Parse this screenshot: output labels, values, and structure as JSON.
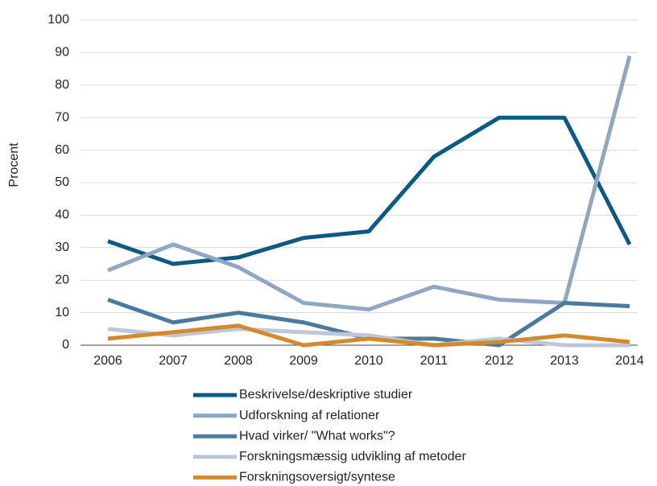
{
  "chart_data": {
    "type": "line",
    "y_label": "Procent",
    "categories": [
      "2006",
      "2007",
      "2008",
      "2009",
      "2010",
      "2011",
      "2012",
      "2013",
      "2014"
    ],
    "series": [
      {
        "name": "Beskrivelse/deskriptive studier",
        "color": "#0b5a84",
        "values": [
          32,
          25,
          27,
          33,
          35,
          58,
          70,
          70,
          31
        ]
      },
      {
        "name": "Udforskning af relationer",
        "color": "#8fa7c0",
        "values": [
          23,
          31,
          24,
          13,
          11,
          18,
          14,
          13,
          89
        ]
      },
      {
        "name": "Hvad virker/ \"What works\"?",
        "color": "#4a7b9d",
        "values": [
          14,
          7,
          10,
          7,
          2,
          2,
          0,
          13,
          12
        ]
      },
      {
        "name": "Forskningsmæssig udvikling af metoder",
        "color": "#bcc7da",
        "values": [
          5,
          3,
          5,
          4,
          3,
          0,
          2,
          0,
          0
        ]
      },
      {
        "name": "Forskningsoversigt/syntese",
        "color": "#d4892c",
        "values": [
          2,
          4,
          6,
          0,
          2,
          0,
          1,
          3,
          1
        ]
      }
    ],
    "ylim": [
      0,
      100
    ],
    "yticks": [
      0,
      10,
      20,
      30,
      40,
      50,
      60,
      70,
      80,
      90,
      100
    ],
    "grid": true,
    "legend": "bottom"
  }
}
